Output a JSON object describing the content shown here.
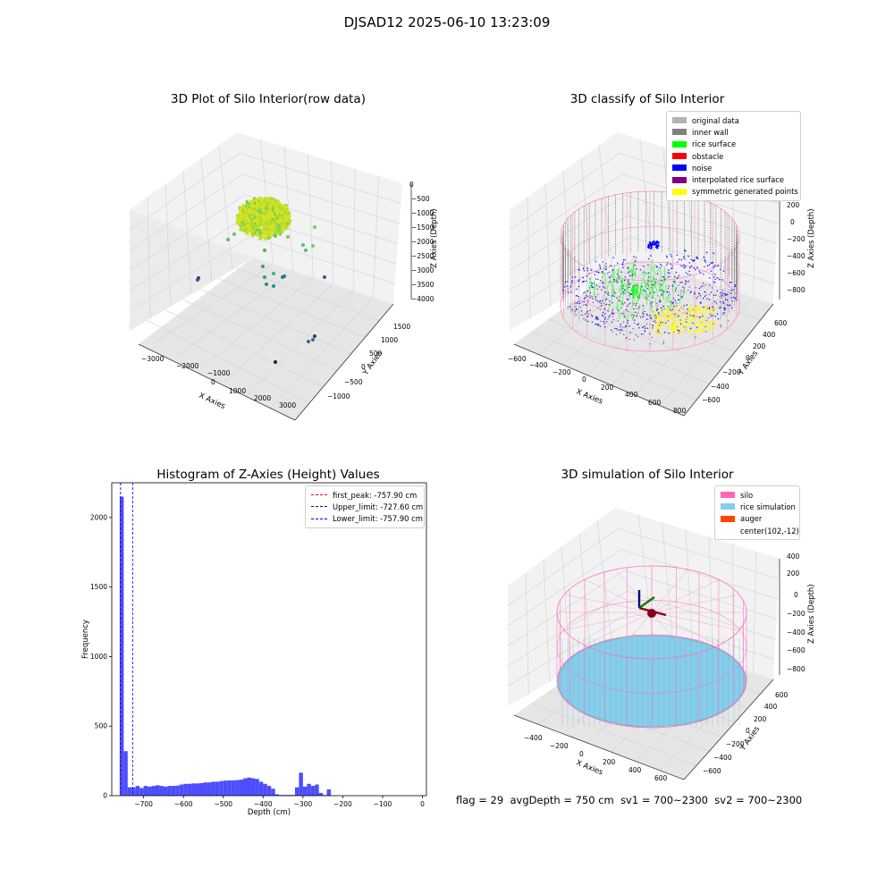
{
  "figure": {
    "title": "DJSAD12 2025-06-10 13:23:09"
  },
  "footer": {
    "flag": "flag = 29",
    "avg_depth": "avgDepth = 750 cm",
    "sv1": "sv1 = 700~2300",
    "sv2": "sv2 = 700~2300"
  },
  "colors": {
    "original": "#b3b3b3",
    "inner_wall": "#808080",
    "rice_surface": "#00ff00",
    "obstacle": "#ff0000",
    "noise": "#0000ff",
    "interp": "#800080",
    "symmetric": "#ffff00",
    "silo": "#ff69b4",
    "rice_sim": "#87ceeb",
    "auger": "#ff4500",
    "hist_bar": "#4d4dff"
  },
  "chart_data": [
    {
      "type": "scatter",
      "title": "3D Plot of Silo Interior(row data)",
      "xlabel": "X Axies",
      "ylabel": "Y Axies",
      "zlabel": "Z Axies (Depth)",
      "x_ticks": [
        "−3000",
        "−2000",
        "−1000",
        "0",
        "1000",
        "2000",
        "3000"
      ],
      "y_ticks": [
        "−1000",
        "−500",
        "0",
        "500",
        "1000",
        "1500"
      ],
      "z_ticks": [
        "0",
        "−500",
        "−1000",
        "−1500",
        "−2000",
        "−2500",
        "−3000",
        "−3500",
        "−4000"
      ]
    },
    {
      "type": "scatter",
      "title": "3D classify of Silo Interior",
      "xlabel": "X Axies",
      "ylabel": "Y Axies",
      "zlabel": "Z Axies (Depth)",
      "x_ticks": [
        "−600",
        "−400",
        "−200",
        "0",
        "200",
        "400",
        "600",
        "800"
      ],
      "y_ticks": [
        "−600",
        "−400",
        "−200",
        "0",
        "200",
        "400",
        "600"
      ],
      "z_ticks": [
        "200",
        "0",
        "−200",
        "−400",
        "−600",
        "−800"
      ],
      "z_top_partial": "0",
      "legend": [
        "original data",
        "inner wall",
        "rice surface",
        "obstacle",
        "noise",
        "interpolated rice surface",
        "symmetric generated points"
      ]
    },
    {
      "type": "bar",
      "title": "Histogram of Z-Axies (Height) Values",
      "xlabel": "Depth (cm)",
      "ylabel": "Frequency",
      "xlim": [
        -780,
        10
      ],
      "ylim": [
        0,
        2250
      ],
      "x_ticks": [
        -700,
        -600,
        -500,
        -400,
        -300,
        -200,
        -100,
        0
      ],
      "x_tick_labels": [
        "−700",
        "−600",
        "−500",
        "−400",
        "−300",
        "−200",
        "−100",
        "0"
      ],
      "y_ticks": [
        0,
        500,
        1000,
        1500,
        2000
      ],
      "y_tick_labels": [
        "0",
        "500",
        "1000",
        "1500",
        "2000"
      ],
      "bin_start": -760,
      "bin_width": 10,
      "values": [
        2150,
        320,
        60,
        60,
        70,
        55,
        70,
        65,
        70,
        75,
        70,
        65,
        70,
        70,
        72,
        80,
        85,
        85,
        88,
        88,
        90,
        95,
        95,
        100,
        100,
        105,
        108,
        110,
        110,
        112,
        115,
        125,
        130,
        125,
        120,
        100,
        85,
        70,
        50,
        10,
        5,
        5,
        5,
        5,
        60,
        165,
        65,
        85,
        70,
        80,
        20,
        5,
        45
      ],
      "lines": [
        {
          "name": "first_peak: -757.90 cm",
          "x": -757.9,
          "color": "#ff0000"
        },
        {
          "name": "Upper_limit: -727.60 cm",
          "x": -727.6,
          "color": "#0000ff"
        },
        {
          "name": "Lower_limit: -757.90 cm",
          "x": -757.9,
          "color": "#0000ff"
        }
      ],
      "legend_position": "top-right"
    },
    {
      "type": "scatter",
      "title": "3D simulation of Silo Interior",
      "xlabel": "X Axies",
      "ylabel": "Y Axies",
      "zlabel": "Z Axies (Depth)",
      "x_ticks": [
        "−400",
        "−200",
        "0",
        "200",
        "400",
        "600"
      ],
      "y_ticks": [
        "−600",
        "−400",
        "−200",
        "0",
        "200",
        "400",
        "600"
      ],
      "z_ticks": [
        "400",
        "200",
        "0",
        "−200",
        "−400",
        "−600",
        "−800"
      ],
      "legend": [
        "silo",
        "rice simulation",
        "auger",
        "center(102,-12)"
      ]
    }
  ]
}
